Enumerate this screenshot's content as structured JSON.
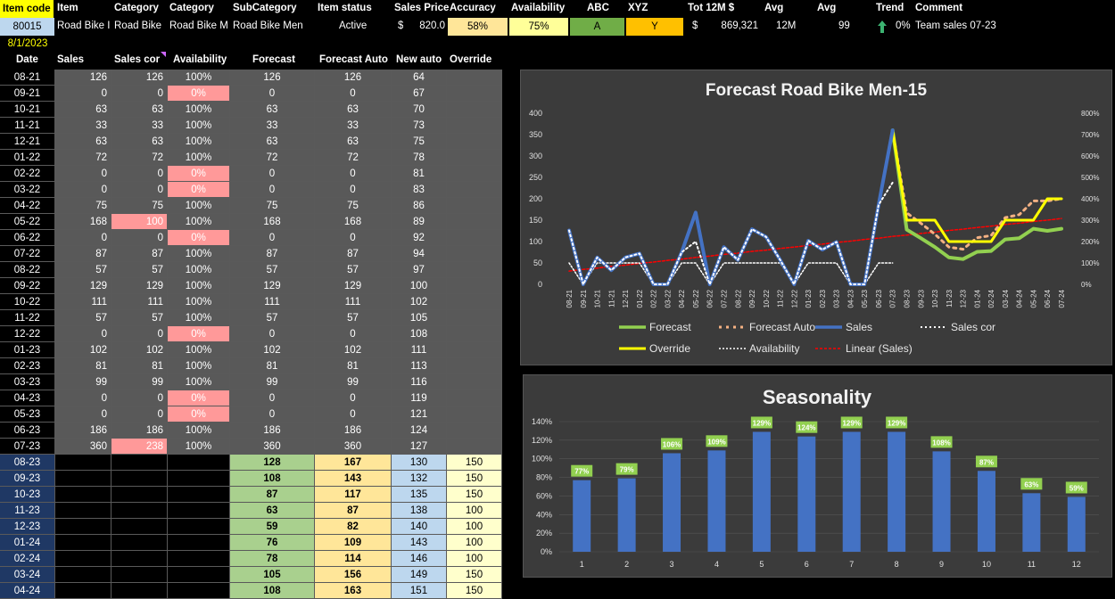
{
  "header": {
    "item_code": "Item code",
    "item": "Item",
    "category1": "Category",
    "category2": "Category",
    "subcategory": "SubCategory",
    "item_status": "Item status",
    "sales_price": "Sales Price",
    "accuracy": "Accuracy",
    "availability": "Availability",
    "abc": "ABC",
    "xyz": "XYZ",
    "tot12m": "Tot 12M $",
    "avg1": "Avg",
    "avg2": "Avg",
    "trend": "Trend",
    "comment": "Comment"
  },
  "item": {
    "code": "80015",
    "name": "Road Bike I",
    "category1": "Road Bike",
    "category2": "Road Bike M",
    "subcategory": "Road Bike Men",
    "status": "Active",
    "price_currency": "$",
    "price": "820.0",
    "accuracy": "58%",
    "availability": "75%",
    "abc": "A",
    "xyz": "Y",
    "tot_currency": "$",
    "tot12m": "869,321",
    "avg_period": "12M",
    "avg_value": "99",
    "trend_pct": "0%",
    "comment": "Team sales 07-23",
    "trend_icon": "arrow-up-icon"
  },
  "date_label": "8/1/2023",
  "columns": {
    "date": "Date",
    "sales": "Sales",
    "sales_cor": "Sales cor",
    "availability": "Availability",
    "forecast": "Forecast",
    "forecast_auto": "Forecast Auto",
    "new_auto": "New auto",
    "override": "Override"
  },
  "history_rows": [
    {
      "date": "08-21",
      "sales": "126",
      "sales_cor": "126",
      "avail": "100%",
      "forecast": "126",
      "fauto": "126",
      "newauto": "64"
    },
    {
      "date": "09-21",
      "sales": "0",
      "sales_cor": "0",
      "avail": "0%",
      "forecast": "0",
      "fauto": "0",
      "newauto": "67"
    },
    {
      "date": "10-21",
      "sales": "63",
      "sales_cor": "63",
      "avail": "100%",
      "forecast": "63",
      "fauto": "63",
      "newauto": "70"
    },
    {
      "date": "11-21",
      "sales": "33",
      "sales_cor": "33",
      "avail": "100%",
      "forecast": "33",
      "fauto": "33",
      "newauto": "73"
    },
    {
      "date": "12-21",
      "sales": "63",
      "sales_cor": "63",
      "avail": "100%",
      "forecast": "63",
      "fauto": "63",
      "newauto": "75"
    },
    {
      "date": "01-22",
      "sales": "72",
      "sales_cor": "72",
      "avail": "100%",
      "forecast": "72",
      "fauto": "72",
      "newauto": "78"
    },
    {
      "date": "02-22",
      "sales": "0",
      "sales_cor": "0",
      "avail": "0%",
      "forecast": "0",
      "fauto": "0",
      "newauto": "81"
    },
    {
      "date": "03-22",
      "sales": "0",
      "sales_cor": "0",
      "avail": "0%",
      "forecast": "0",
      "fauto": "0",
      "newauto": "83"
    },
    {
      "date": "04-22",
      "sales": "75",
      "sales_cor": "75",
      "avail": "100%",
      "forecast": "75",
      "fauto": "75",
      "newauto": "86"
    },
    {
      "date": "05-22",
      "sales": "168",
      "sales_cor": "100",
      "avail": "100%",
      "forecast": "168",
      "fauto": "168",
      "newauto": "89"
    },
    {
      "date": "06-22",
      "sales": "0",
      "sales_cor": "0",
      "avail": "0%",
      "forecast": "0",
      "fauto": "0",
      "newauto": "92"
    },
    {
      "date": "07-22",
      "sales": "87",
      "sales_cor": "87",
      "avail": "100%",
      "forecast": "87",
      "fauto": "87",
      "newauto": "94"
    },
    {
      "date": "08-22",
      "sales": "57",
      "sales_cor": "57",
      "avail": "100%",
      "forecast": "57",
      "fauto": "57",
      "newauto": "97"
    },
    {
      "date": "09-22",
      "sales": "129",
      "sales_cor": "129",
      "avail": "100%",
      "forecast": "129",
      "fauto": "129",
      "newauto": "100"
    },
    {
      "date": "10-22",
      "sales": "111",
      "sales_cor": "111",
      "avail": "100%",
      "forecast": "111",
      "fauto": "111",
      "newauto": "102"
    },
    {
      "date": "11-22",
      "sales": "57",
      "sales_cor": "57",
      "avail": "100%",
      "forecast": "57",
      "fauto": "57",
      "newauto": "105"
    },
    {
      "date": "12-22",
      "sales": "0",
      "sales_cor": "0",
      "avail": "0%",
      "forecast": "0",
      "fauto": "0",
      "newauto": "108"
    },
    {
      "date": "01-23",
      "sales": "102",
      "sales_cor": "102",
      "avail": "100%",
      "forecast": "102",
      "fauto": "102",
      "newauto": "111"
    },
    {
      "date": "02-23",
      "sales": "81",
      "sales_cor": "81",
      "avail": "100%",
      "forecast": "81",
      "fauto": "81",
      "newauto": "113"
    },
    {
      "date": "03-23",
      "sales": "99",
      "sales_cor": "99",
      "avail": "100%",
      "forecast": "99",
      "fauto": "99",
      "newauto": "116"
    },
    {
      "date": "04-23",
      "sales": "0",
      "sales_cor": "0",
      "avail": "0%",
      "forecast": "0",
      "fauto": "0",
      "newauto": "119"
    },
    {
      "date": "05-23",
      "sales": "0",
      "sales_cor": "0",
      "avail": "0%",
      "forecast": "0",
      "fauto": "0",
      "newauto": "121"
    },
    {
      "date": "06-23",
      "sales": "186",
      "sales_cor": "186",
      "avail": "100%",
      "forecast": "186",
      "fauto": "186",
      "newauto": "124"
    },
    {
      "date": "07-23",
      "sales": "360",
      "sales_cor": "238",
      "avail": "100%",
      "forecast": "360",
      "fauto": "360",
      "newauto": "127"
    }
  ],
  "future_rows": [
    {
      "date": "08-23",
      "forecast": "128",
      "fauto": "167",
      "newauto": "130",
      "override": "150"
    },
    {
      "date": "09-23",
      "forecast": "108",
      "fauto": "143",
      "newauto": "132",
      "override": "150"
    },
    {
      "date": "10-23",
      "forecast": "87",
      "fauto": "117",
      "newauto": "135",
      "override": "150"
    },
    {
      "date": "11-23",
      "forecast": "63",
      "fauto": "87",
      "newauto": "138",
      "override": "100"
    },
    {
      "date": "12-23",
      "forecast": "59",
      "fauto": "82",
      "newauto": "140",
      "override": "100"
    },
    {
      "date": "01-24",
      "forecast": "76",
      "fauto": "109",
      "newauto": "143",
      "override": "100"
    },
    {
      "date": "02-24",
      "forecast": "78",
      "fauto": "114",
      "newauto": "146",
      "override": "100"
    },
    {
      "date": "03-24",
      "forecast": "105",
      "fauto": "156",
      "newauto": "149",
      "override": "150"
    },
    {
      "date": "04-24",
      "forecast": "108",
      "fauto": "163",
      "newauto": "151",
      "override": "150"
    }
  ],
  "colors": {
    "accent_yellow": "#ffff00",
    "zero_pink": "#ff9999",
    "forecast_green": "#a9d08e",
    "fauto_orange": "#ffe699",
    "newauto_blue": "#bdd7ee",
    "override_yellow": "#ffffcc",
    "date_blue": "#1f3864",
    "grid_gray": "#595959",
    "abc_green": "#70ad47",
    "xyz_orange": "#ffc000"
  },
  "chart_data": [
    {
      "type": "line",
      "title": "Forecast Road Bike Men-15",
      "categories": [
        "08-21",
        "09-21",
        "10-21",
        "11-21",
        "12-21",
        "01-22",
        "02-22",
        "03-22",
        "04-22",
        "05-22",
        "06-22",
        "07-22",
        "08-22",
        "09-22",
        "10-22",
        "11-22",
        "12-22",
        "01-23",
        "02-23",
        "03-23",
        "04-23",
        "05-23",
        "06-23",
        "07-23",
        "08-23",
        "09-23",
        "10-23",
        "11-23",
        "12-23",
        "01-24",
        "02-24",
        "03-24",
        "04-24",
        "05-24",
        "06-24",
        "07-24"
      ],
      "ylim": [
        0,
        400
      ],
      "y_ticks": [
        "0",
        "50",
        "100",
        "150",
        "200",
        "250",
        "300",
        "350",
        "400"
      ],
      "y2lim": [
        0,
        8
      ],
      "y2_ticks": [
        "0%",
        "100%",
        "200%",
        "300%",
        "400%",
        "500%",
        "600%",
        "700%",
        "800%"
      ],
      "legend": [
        "Forecast",
        "Forecast Auto",
        "Sales",
        "Sales cor",
        "Override",
        "Availability",
        "Linear (Sales)"
      ],
      "legend_position": "bottom",
      "series": [
        {
          "name": "Sales",
          "color": "#4472c4",
          "values": [
            126,
            0,
            63,
            33,
            63,
            72,
            0,
            0,
            75,
            168,
            0,
            87,
            57,
            129,
            111,
            57,
            0,
            102,
            81,
            99,
            0,
            0,
            186,
            360,
            null,
            null,
            null,
            null,
            null,
            null,
            null,
            null,
            null,
            null,
            null,
            null
          ]
        },
        {
          "name": "Sales cor",
          "color": "#ffffff",
          "values": [
            126,
            0,
            63,
            33,
            63,
            72,
            0,
            0,
            75,
            100,
            0,
            87,
            57,
            129,
            111,
            57,
            0,
            102,
            81,
            99,
            0,
            0,
            186,
            238,
            null,
            null,
            null,
            null,
            null,
            null,
            null,
            null,
            null,
            null,
            null,
            null
          ]
        },
        {
          "name": "Forecast",
          "color": "#92d050",
          "values": [
            null,
            null,
            null,
            null,
            null,
            null,
            null,
            null,
            null,
            null,
            null,
            null,
            null,
            null,
            null,
            null,
            null,
            null,
            null,
            null,
            null,
            null,
            null,
            360,
            128,
            108,
            87,
            63,
            59,
            76,
            78,
            105,
            108,
            130,
            125,
            130
          ]
        },
        {
          "name": "Forecast Auto",
          "color": "#f4b183",
          "values": [
            null,
            null,
            null,
            null,
            null,
            null,
            null,
            null,
            null,
            null,
            null,
            null,
            null,
            null,
            null,
            null,
            null,
            null,
            null,
            null,
            null,
            null,
            null,
            360,
            167,
            143,
            117,
            87,
            82,
            109,
            114,
            156,
            163,
            195,
            195,
            200
          ]
        },
        {
          "name": "Override",
          "color": "#ffff00",
          "values": [
            null,
            null,
            null,
            null,
            null,
            null,
            null,
            null,
            null,
            null,
            null,
            null,
            null,
            null,
            null,
            null,
            null,
            null,
            null,
            null,
            null,
            null,
            null,
            360,
            150,
            150,
            150,
            100,
            100,
            100,
            100,
            150,
            150,
            150,
            200,
            200
          ]
        },
        {
          "name": "Availability",
          "color": "#ffffff",
          "axis": "y2",
          "values": [
            1,
            0,
            1,
            1,
            1,
            1,
            0,
            0,
            1,
            1,
            0,
            1,
            1,
            1,
            1,
            1,
            0,
            1,
            1,
            1,
            0,
            0,
            1,
            1,
            null,
            null,
            null,
            null,
            null,
            null,
            null,
            null,
            null,
            null,
            null,
            null
          ]
        },
        {
          "name": "Linear (Sales)",
          "color": "#ff0000",
          "values": [
            31,
            35,
            38,
            42,
            45,
            49,
            52,
            56,
            59,
            63,
            66,
            70,
            73,
            77,
            80,
            84,
            87,
            91,
            94,
            98,
            101,
            105,
            108,
            112,
            115,
            119,
            122,
            126,
            129,
            133,
            136,
            140,
            143,
            147,
            150,
            154
          ]
        }
      ]
    },
    {
      "type": "bar",
      "title": "Seasonality",
      "categories": [
        "1",
        "2",
        "3",
        "4",
        "5",
        "6",
        "7",
        "8",
        "9",
        "10",
        "11",
        "12"
      ],
      "values": [
        77,
        79,
        106,
        109,
        129,
        124,
        129,
        129,
        108,
        87,
        63,
        59
      ],
      "labels": [
        "77%",
        "79%",
        "106%",
        "109%",
        "129%",
        "124%",
        "129%",
        "129%",
        "108%",
        "87%",
        "63%",
        "59%"
      ],
      "ylim": [
        0,
        140
      ],
      "y_ticks": [
        "0%",
        "20%",
        "40%",
        "60%",
        "80%",
        "100%",
        "120%",
        "140%"
      ]
    }
  ]
}
